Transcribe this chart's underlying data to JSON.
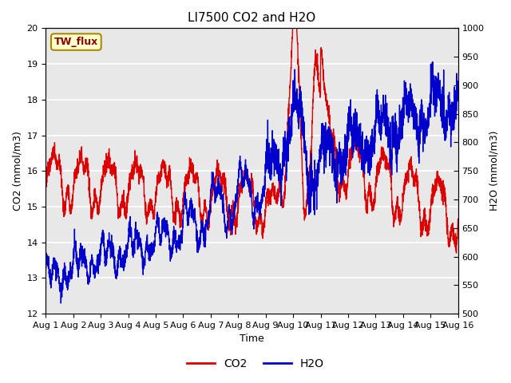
{
  "title": "LI7500 CO2 and H2O",
  "xlabel": "Time",
  "ylabel_left": "CO2 (mmol/m3)",
  "ylabel_right": "H2O (mmol/m3)",
  "xlim": [
    0,
    15
  ],
  "ylim_left": [
    12.0,
    20.0
  ],
  "ylim_right": [
    500,
    1000
  ],
  "yticks_left": [
    12.0,
    13.0,
    14.0,
    15.0,
    16.0,
    17.0,
    18.0,
    19.0,
    20.0
  ],
  "yticks_right": [
    500,
    550,
    600,
    650,
    700,
    750,
    800,
    850,
    900,
    950,
    1000
  ],
  "xticks": [
    0,
    1,
    2,
    3,
    4,
    5,
    6,
    7,
    8,
    9,
    10,
    11,
    12,
    13,
    14,
    15
  ],
  "xtick_labels": [
    "Aug 1",
    "Aug 2",
    "Aug 3",
    "Aug 4",
    "Aug 5",
    "Aug 6",
    "Aug 7",
    "Aug 8",
    "Aug 9",
    "Aug 10",
    "Aug 11",
    "Aug 12",
    "Aug 13",
    "Aug 14",
    "Aug 15",
    "Aug 16"
  ],
  "co2_color": "#dd0000",
  "h2o_color": "#0000cc",
  "plot_bg_color": "#e8e8e8",
  "legend_label_co2": "CO2",
  "legend_label_h2o": "H2O",
  "annotation_text": "TW_flux",
  "grid_color": "white",
  "linewidth": 1.0,
  "title_fontsize": 11,
  "label_fontsize": 9,
  "tick_fontsize": 8
}
